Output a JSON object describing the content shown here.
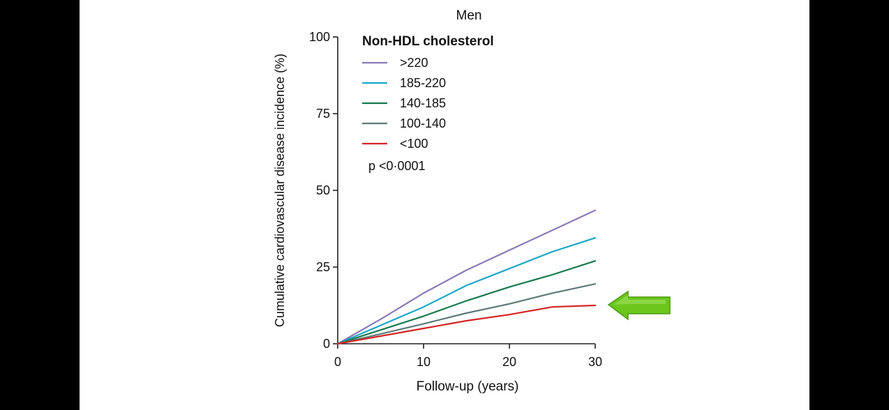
{
  "chart_data": {
    "type": "line",
    "title": "Men",
    "xlabel": "Follow-up (years)",
    "ylabel": "Cumulative cardiovascular disease incidence (%)",
    "xlim": [
      0,
      30
    ],
    "ylim": [
      0,
      100
    ],
    "x_ticks": [
      0,
      10,
      20,
      30
    ],
    "y_ticks": [
      0,
      25,
      50,
      75,
      100
    ],
    "grid": false,
    "legend_title": "Non-HDL cholesterol",
    "legend_position": "top-left",
    "annotation": "p <0·0001",
    "x": [
      0,
      5,
      10,
      15,
      20,
      25,
      30
    ],
    "series": [
      {
        "name": ">220",
        "color": "#8c78b8",
        "values": [
          0,
          8,
          16.5,
          24,
          30.5,
          37,
          43.5
        ]
      },
      {
        "name": "185-220",
        "color": "#1aa6c8",
        "values": [
          0,
          6,
          12,
          19,
          24.5,
          30,
          34.5
        ]
      },
      {
        "name": "140-185",
        "color": "#167a4e",
        "values": [
          0,
          4.5,
          9,
          14,
          18.5,
          22.5,
          27
        ]
      },
      {
        "name": "100-140",
        "color": "#5c7a78",
        "values": [
          0,
          3.2,
          6.5,
          10,
          13,
          16.5,
          19.5
        ]
      },
      {
        "name": "<100",
        "color": "#d42424",
        "values": [
          0,
          2.5,
          5,
          7.5,
          9.5,
          12,
          12.5
        ]
      }
    ]
  },
  "pointer": {
    "name": "green-arrow",
    "color": "#6cc61c",
    "points_to_series": "<100"
  }
}
